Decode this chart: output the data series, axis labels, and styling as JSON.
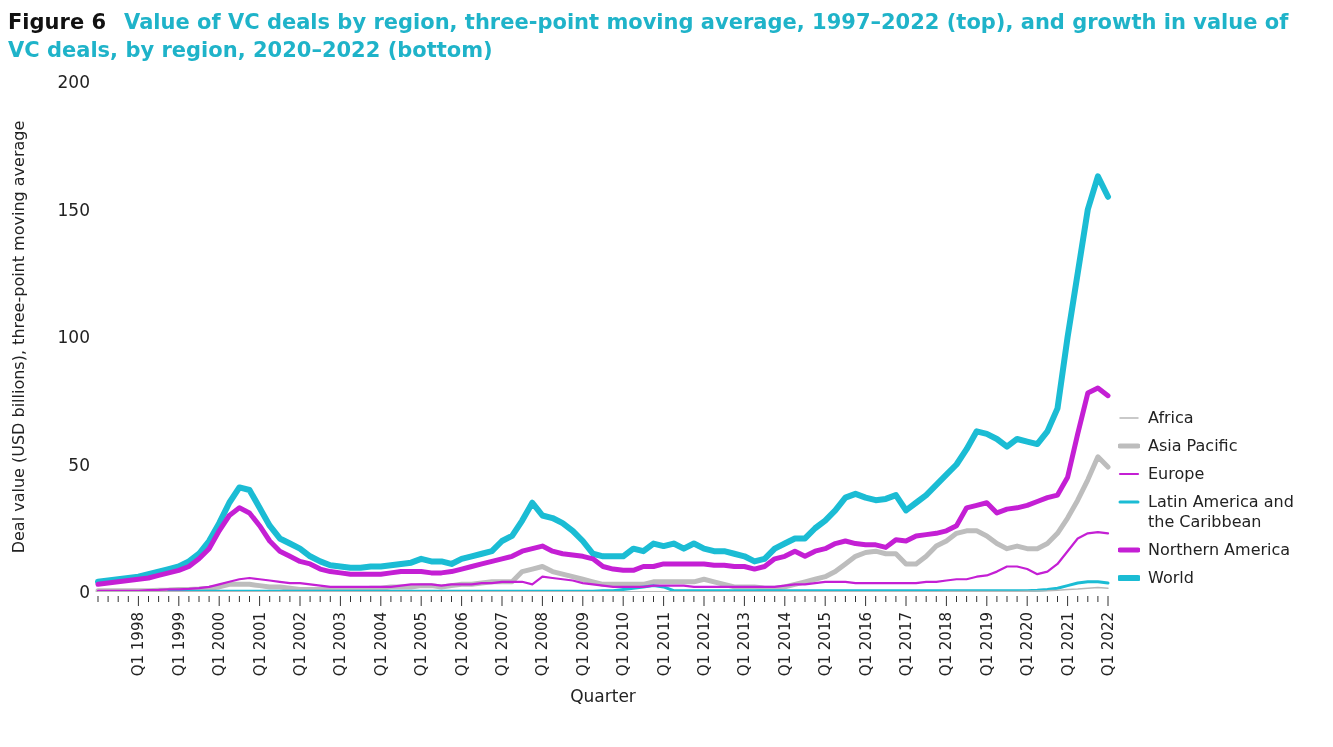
{
  "chart_data": {
    "type": "line",
    "title": "Figure 6",
    "subtitle": "Value of VC deals by region, three-point moving average, 1997–2022 (top), and growth in value of VC deals, by region, 2020–2022 (bottom)",
    "xlabel": "Quarter",
    "ylabel": "Deal value (USD billions), three-point moving average",
    "categories": [
      null,
      null,
      null,
      null,
      "Q1 1998",
      null,
      null,
      null,
      "Q1 1999",
      null,
      null,
      null,
      "Q1 2000",
      null,
      null,
      null,
      "Q1 2001",
      null,
      null,
      null,
      "Q1 2002",
      null,
      null,
      null,
      "Q1 2003",
      null,
      null,
      null,
      "Q1 2004",
      null,
      null,
      null,
      "Q1 2005",
      null,
      null,
      null,
      "Q1 2006",
      null,
      null,
      null,
      "Q1 2007",
      null,
      null,
      null,
      "Q1 2008",
      null,
      null,
      null,
      "Q1 2009",
      null,
      null,
      null,
      "Q1 2010",
      null,
      null,
      null,
      "Q1 2011",
      null,
      null,
      null,
      "Q1 2012",
      null,
      null,
      null,
      "Q1 2013",
      null,
      null,
      null,
      "Q1 2014",
      null,
      null,
      null,
      "Q1 2015",
      null,
      null,
      null,
      "Q1 2016",
      null,
      null,
      null,
      "Q1 2017",
      null,
      null,
      null,
      "Q1 2018",
      null,
      null,
      null,
      "Q1 2019",
      null,
      null,
      null,
      "Q1 2020",
      null,
      null,
      null,
      "Q1 2021",
      null,
      null,
      null,
      "Q1 2022"
    ],
    "series": [
      {
        "name": "Africa",
        "color": "#b8b8b8",
        "values": [
          0.1,
          0.1,
          0.1,
          0.1,
          0.1,
          0.1,
          0.1,
          0.1,
          0.1,
          0.1,
          0.1,
          0.1,
          0.1,
          0.1,
          0.1,
          0.1,
          0.1,
          0.1,
          0.1,
          0.1,
          0.1,
          0.1,
          0.1,
          0.1,
          0.1,
          0.1,
          0.1,
          0.1,
          0.1,
          0.1,
          0.1,
          0.1,
          0.1,
          0.1,
          0.1,
          0.1,
          0.1,
          0.1,
          0.1,
          0.1,
          0.1,
          0.1,
          0.1,
          0.1,
          0.1,
          0.1,
          0.1,
          0.1,
          0.1,
          0.1,
          0.1,
          0.1,
          0.1,
          0.1,
          0.1,
          0.1,
          0.1,
          0.1,
          0.1,
          0.1,
          0.1,
          0.1,
          0.1,
          0.1,
          0.1,
          0.1,
          0.1,
          0.1,
          0.1,
          0.1,
          0.1,
          0.1,
          0.1,
          0.1,
          0.1,
          0.1,
          0.1,
          0.1,
          0.1,
          0.1,
          0.1,
          0.1,
          0.1,
          0.1,
          0.2,
          0.2,
          0.2,
          0.2,
          0.2,
          0.2,
          0.2,
          0.2,
          0.3,
          0.4,
          0.5,
          0.7,
          1,
          1.2,
          1.5,
          1.8,
          1.5
        ]
      },
      {
        "name": "Asia Pacific",
        "color": "#bdbdbd",
        "values": [
          0.5,
          0.5,
          0.5,
          0.5,
          0.5,
          0.5,
          0.7,
          0.8,
          1,
          1,
          1.2,
          1.5,
          2,
          3,
          3,
          3,
          2.5,
          2,
          2,
          1.5,
          1,
          1,
          1,
          1,
          1,
          1,
          1,
          1.5,
          1.5,
          2,
          2,
          2,
          2.5,
          2.5,
          2,
          2.5,
          3,
          3,
          3.5,
          4,
          4,
          4,
          8,
          9,
          10,
          8,
          7,
          6,
          5,
          4,
          3,
          3,
          3,
          3,
          3,
          4,
          4,
          4,
          4,
          4,
          5,
          4,
          3,
          2,
          2,
          2,
          1.5,
          1.5,
          2,
          3,
          4,
          5,
          6,
          8,
          11,
          14,
          15.5,
          16,
          15,
          15,
          11,
          11,
          14,
          18,
          20,
          23,
          24,
          24,
          22,
          19,
          17,
          18,
          17,
          17,
          19,
          23,
          29,
          36,
          44,
          53,
          49
        ]
      },
      {
        "name": "Europe",
        "color": "#c41fd4",
        "values": [
          0.5,
          0.5,
          0.5,
          0.5,
          0.5,
          0.7,
          0.8,
          1,
          1,
          1.2,
          1.5,
          2,
          3,
          4,
          5,
          5.5,
          5,
          4.5,
          4,
          3.5,
          3.5,
          3,
          2.5,
          2,
          2,
          2,
          2,
          2,
          2,
          2,
          2.5,
          3,
          3,
          3,
          2.5,
          3,
          3,
          3,
          3.5,
          3.5,
          4,
          4,
          4,
          3,
          6,
          5.5,
          5,
          4.5,
          3.5,
          3,
          2.5,
          2,
          2,
          2,
          2,
          2.5,
          2.5,
          2.5,
          2.5,
          2,
          2,
          2,
          2,
          2,
          2,
          2,
          2,
          2,
          2.5,
          3,
          3,
          3.5,
          4,
          4,
          4,
          3.5,
          3.5,
          3.5,
          3.5,
          3.5,
          3.5,
          3.5,
          4,
          4,
          4.5,
          5,
          5,
          6,
          6.5,
          8,
          10,
          10,
          9,
          7,
          8,
          11,
          16,
          21,
          23,
          23.5,
          23
        ]
      },
      {
        "name": "Latin America and the Caribbean",
        "color": "#1bbcd4",
        "values": [
          null,
          null,
          null,
          null,
          null,
          null,
          null,
          0.3,
          0.3,
          0.3,
          0.3,
          0.3,
          0.3,
          0.3,
          0.3,
          0.3,
          0.3,
          0.3,
          0.3,
          0.3,
          0.3,
          0.3,
          0.3,
          0.3,
          0.3,
          0.3,
          0.3,
          0.3,
          0.3,
          0.3,
          0.3,
          0.3,
          0.3,
          0.3,
          0.3,
          0.3,
          0.3,
          0.3,
          0.3,
          0.3,
          0.3,
          0.3,
          0.3,
          0.3,
          0.3,
          0.3,
          0.3,
          0.3,
          0.3,
          0.3,
          0.5,
          0.5,
          1,
          1.5,
          2,
          2.5,
          2,
          0.5,
          0.5,
          0.5,
          0.5,
          0.5,
          0.5,
          0.5,
          0.5,
          0.5,
          0.5,
          0.5,
          0.5,
          0.5,
          0.5,
          0.5,
          0.5,
          0.5,
          0.5,
          0.5,
          0.5,
          0.5,
          0.5,
          0.5,
          0.5,
          0.5,
          0.5,
          0.5,
          0.5,
          0.5,
          0.5,
          0.5,
          0.5,
          0.5,
          0.5,
          0.5,
          0.5,
          0.7,
          1,
          1.5,
          2.5,
          3.5,
          4,
          4,
          3.5
        ]
      },
      {
        "name": "Northern America",
        "color": "#c41fd4",
        "values": [
          3,
          3.5,
          4,
          4.5,
          5,
          5.5,
          6.5,
          7.5,
          8.5,
          10,
          13,
          17,
          24,
          30,
          33,
          31,
          26,
          20,
          16,
          14,
          12,
          11,
          9,
          8,
          7.5,
          7,
          7,
          7,
          7,
          7.5,
          8,
          8,
          8,
          7.5,
          7.5,
          8,
          9,
          10,
          11,
          12,
          13,
          14,
          16,
          17,
          18,
          16,
          15,
          14.5,
          14,
          13,
          10,
          9,
          8.5,
          8.5,
          10,
          10,
          11,
          11,
          11,
          11,
          11,
          10.5,
          10.5,
          10,
          10,
          9,
          10,
          13,
          14,
          16,
          14,
          16,
          17,
          19,
          20,
          19,
          18.5,
          18.5,
          17.5,
          20.5,
          20,
          22,
          22.5,
          23,
          24,
          26,
          33,
          34,
          35,
          31,
          32.5,
          33,
          34,
          35.5,
          37,
          38,
          45,
          62,
          78,
          80,
          77
        ]
      },
      {
        "name": "World",
        "color": "#1bbcd4",
        "values": [
          4,
          4.5,
          5,
          5.5,
          6,
          7,
          8,
          9,
          10,
          12,
          15,
          20,
          27,
          35,
          41,
          40,
          33,
          26,
          21,
          19,
          17,
          14,
          12,
          10.5,
          10,
          9.5,
          9.5,
          10,
          10,
          10.5,
          11,
          11.5,
          13,
          12,
          12,
          11,
          13,
          14,
          15,
          16,
          20,
          22,
          28,
          35,
          30,
          29,
          27,
          24,
          20,
          15,
          14,
          14,
          14,
          17,
          16,
          19,
          18,
          19,
          17,
          19,
          17,
          16,
          16,
          15,
          14,
          12,
          13,
          17,
          19,
          21,
          21,
          25,
          28,
          32,
          37,
          38.5,
          37,
          36,
          36.5,
          38,
          32,
          35,
          38,
          42,
          46,
          50,
          56,
          63,
          62,
          60,
          57,
          60,
          59,
          58,
          63,
          72,
          100,
          125,
          150,
          163,
          155
        ]
      }
    ],
    "ylim": [
      0,
      200
    ],
    "yticks": [
      0,
      50,
      100,
      150,
      200
    ],
    "legend": "right"
  }
}
